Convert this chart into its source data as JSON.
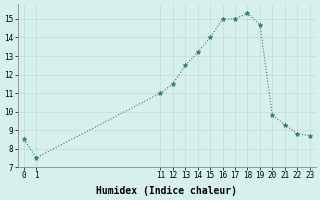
{
  "x": [
    0,
    1,
    11,
    12,
    13,
    14,
    15,
    16,
    17,
    18,
    19,
    20,
    21,
    22,
    23
  ],
  "y": [
    8.5,
    7.5,
    11.0,
    11.5,
    12.5,
    13.2,
    14.0,
    15.0,
    15.0,
    15.3,
    14.7,
    9.8,
    9.3,
    8.8,
    8.7
  ],
  "line_color": "#2e7d6e",
  "marker_color": "#2e7d6e",
  "bg_color": "#d8f0ec",
  "grid_color_v": "#c0ddd9",
  "grid_color_h": "#c0ddd9",
  "xlabel": "Humidex (Indice chaleur)",
  "xlim": [
    -0.5,
    23.5
  ],
  "ylim": [
    7.0,
    15.8
  ],
  "yticks": [
    7,
    8,
    9,
    10,
    11,
    12,
    13,
    14,
    15
  ],
  "xticks": [
    0,
    1,
    11,
    12,
    13,
    14,
    15,
    16,
    17,
    18,
    19,
    20,
    21,
    22,
    23
  ],
  "tick_fontsize": 5.5,
  "xlabel_fontsize": 7.0
}
